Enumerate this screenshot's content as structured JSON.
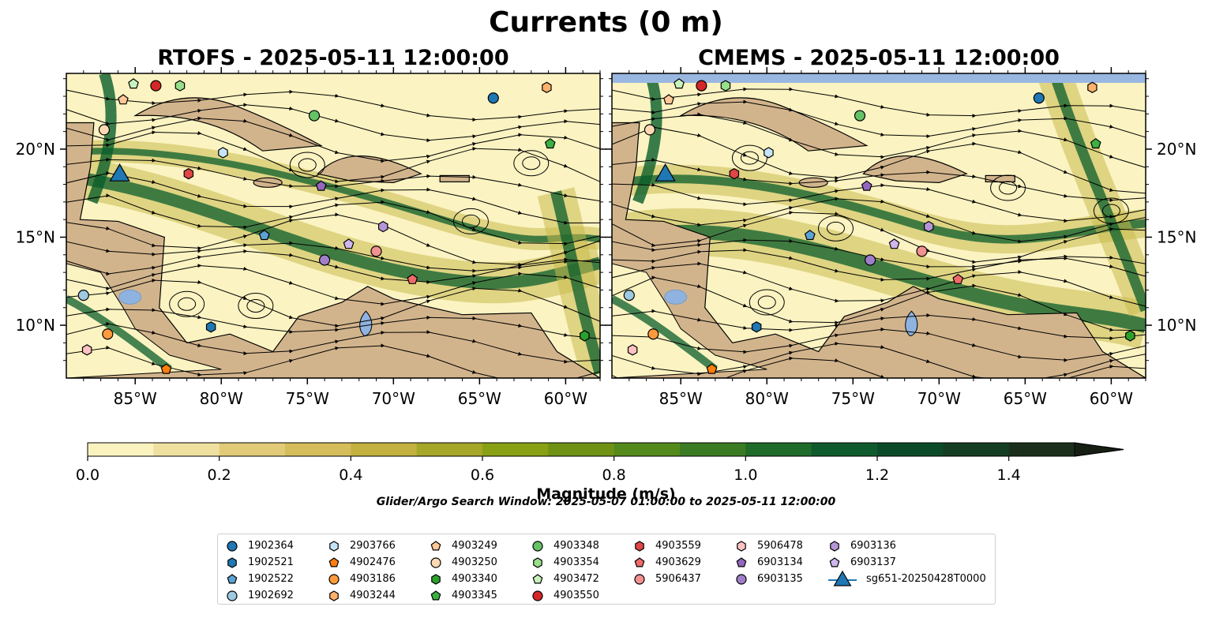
{
  "suptitle": "Currents (0 m)",
  "panels": [
    {
      "title": "RTOFS - 2025-05-11 12:00:00"
    },
    {
      "title": "CMEMS - 2025-05-11 12:00:00"
    }
  ],
  "map": {
    "lon_ticks": [
      "85°W",
      "80°W",
      "75°W",
      "70°W",
      "65°W",
      "60°W"
    ],
    "lon_values": [
      -85,
      -80,
      -75,
      -70,
      -65,
      -60
    ],
    "lat_ticks": [
      "20°N",
      "15°N",
      "10°N"
    ],
    "lat_values": [
      20,
      15,
      10
    ],
    "extent": {
      "lon_min": -89,
      "lon_max": -58,
      "lat_min": 7,
      "lat_max": 24.3
    }
  },
  "colors": {
    "land": "#d2b48c",
    "ocean_low": "#fbf3c1",
    "ocean_mid": "#c9b94f",
    "current": "#0a5e2b",
    "lake": "#8fb3e0"
  },
  "colorbar": {
    "label": "Magnitude (m/s)",
    "ticks": [
      "0.0",
      "0.2",
      "0.4",
      "0.6",
      "0.8",
      "1.0",
      "1.2",
      "1.4"
    ],
    "tick_values": [
      0,
      0.2,
      0.4,
      0.6,
      0.8,
      1.0,
      1.2,
      1.4
    ],
    "max": 1.5,
    "colors": [
      "#faf3c0",
      "#efe0a0",
      "#e2cb78",
      "#d4bd5a",
      "#c2b13e",
      "#a6a628",
      "#88a014",
      "#6f9215",
      "#548a1b",
      "#3a7b24",
      "#1f6b29",
      "#0f5a2c",
      "#0b4a28",
      "#153d23",
      "#1b2f1c",
      "#171f14"
    ]
  },
  "search_window": "Glider/Argo Search Window: 2025-05-07 01:00:00 to 2025-05-11 12:00:00",
  "legend": [
    {
      "label": "1902364",
      "marker": "circle",
      "color": "#1f77b4"
    },
    {
      "label": "1902521",
      "marker": "hexagon",
      "color": "#1f77b4"
    },
    {
      "label": "1902522",
      "marker": "pentagon",
      "color": "#5ba3d6"
    },
    {
      "label": "1902692",
      "marker": "circle",
      "color": "#9ecae1"
    },
    {
      "label": "2903766",
      "marker": "hexagon",
      "color": "#c6e4f7"
    },
    {
      "label": "4902476",
      "marker": "pentagon",
      "color": "#ff7f0e"
    },
    {
      "label": "4903186",
      "marker": "circle",
      "color": "#fd9a3c"
    },
    {
      "label": "4903244",
      "marker": "hexagon",
      "color": "#ffb26b"
    },
    {
      "label": "4903249",
      "marker": "pentagon",
      "color": "#ffc896"
    },
    {
      "label": "4903250",
      "marker": "circle",
      "color": "#ffd9b3"
    },
    {
      "label": "4903340",
      "marker": "hexagon",
      "color": "#2ca02c"
    },
    {
      "label": "4903345",
      "marker": "pentagon",
      "color": "#3cb043"
    },
    {
      "label": "4903348",
      "marker": "circle",
      "color": "#66c266"
    },
    {
      "label": "4903354",
      "marker": "hexagon",
      "color": "#98df8a"
    },
    {
      "label": "4903472",
      "marker": "pentagon",
      "color": "#c8f2bd"
    },
    {
      "label": "4903550",
      "marker": "circle",
      "color": "#d62728"
    },
    {
      "label": "4903559",
      "marker": "hexagon",
      "color": "#e04646"
    },
    {
      "label": "4903629",
      "marker": "pentagon",
      "color": "#f06a6a"
    },
    {
      "label": "5906437",
      "marker": "circle",
      "color": "#f29191"
    },
    {
      "label": "5906478",
      "marker": "hexagon",
      "color": "#ffc2c2"
    },
    {
      "label": "6903134",
      "marker": "pentagon",
      "color": "#9467bd"
    },
    {
      "label": "6903135",
      "marker": "circle",
      "color": "#a07ec9"
    },
    {
      "label": "6903136",
      "marker": "hexagon",
      "color": "#b595d6"
    },
    {
      "label": "6903137",
      "marker": "pentagon",
      "color": "#cfb6ec"
    },
    {
      "label": "sg651-20250428T0000",
      "marker": "triangle",
      "color": "#1f77b4"
    }
  ],
  "floats": [
    {
      "id": "1902364",
      "lon": -64.2,
      "lat": 22.9
    },
    {
      "id": "1902521",
      "lon": -80.6,
      "lat": 9.9
    },
    {
      "id": "1902522",
      "lon": -77.5,
      "lat": 15.1
    },
    {
      "id": "1902692",
      "lon": -88.0,
      "lat": 11.7
    },
    {
      "id": "2903766",
      "lon": -79.9,
      "lat": 19.8
    },
    {
      "id": "4902476",
      "lon": -83.2,
      "lat": 7.5
    },
    {
      "id": "4903186",
      "lon": -86.6,
      "lat": 9.5
    },
    {
      "id": "4903244",
      "lon": -61.1,
      "lat": 23.5
    },
    {
      "id": "4903249",
      "lon": -85.7,
      "lat": 22.8
    },
    {
      "id": "4903250",
      "lon": -86.8,
      "lat": 21.1
    },
    {
      "id": "4903340",
      "lon": -58.9,
      "lat": 9.4
    },
    {
      "id": "4903345",
      "lon": -60.9,
      "lat": 20.3
    },
    {
      "id": "4903348",
      "lon": -74.6,
      "lat": 21.9
    },
    {
      "id": "4903354",
      "lon": -82.4,
      "lat": 23.6
    },
    {
      "id": "4903472",
      "lon": -85.1,
      "lat": 23.7
    },
    {
      "id": "4903550",
      "lon": -83.8,
      "lat": 23.6
    },
    {
      "id": "4903559",
      "lon": -81.9,
      "lat": 18.6
    },
    {
      "id": "4903629",
      "lon": -68.9,
      "lat": 12.6
    },
    {
      "id": "5906437",
      "lon": -71.0,
      "lat": 14.2
    },
    {
      "id": "5906478",
      "lon": -87.8,
      "lat": 8.6
    },
    {
      "id": "6903134",
      "lon": -74.2,
      "lat": 17.9
    },
    {
      "id": "6903135",
      "lon": -74.0,
      "lat": 13.7
    },
    {
      "id": "6903136",
      "lon": -70.6,
      "lat": 15.6
    },
    {
      "id": "6903137",
      "lon": -72.6,
      "lat": 14.6
    }
  ],
  "glider": {
    "id": "sg651-20250428T0000",
    "lon": -85.9,
    "lat": 18.6
  }
}
